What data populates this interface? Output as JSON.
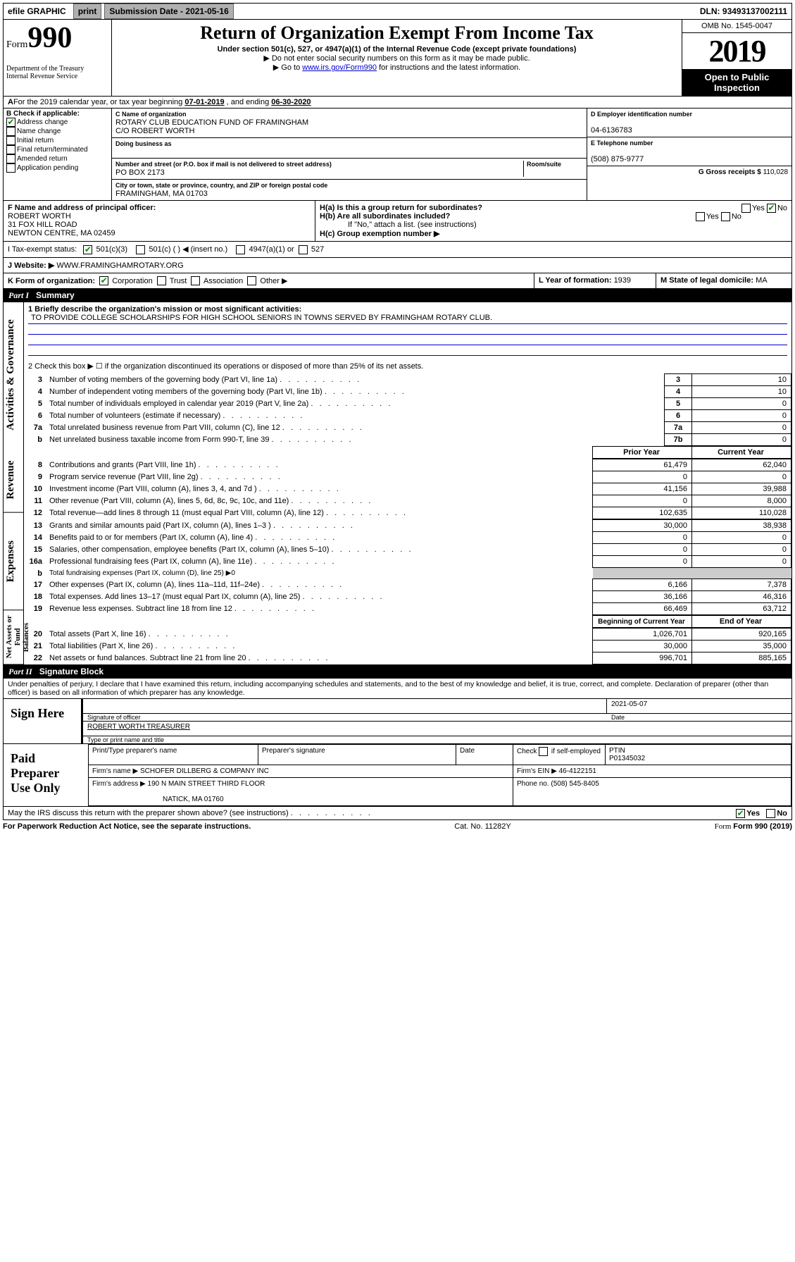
{
  "topbar": {
    "efile": "efile GRAPHIC",
    "print": "print",
    "submission_label": "Submission Date - ",
    "submission_date": "2021-05-16",
    "dln_label": "DLN: ",
    "dln": "93493137002111"
  },
  "header": {
    "form_label": "Form",
    "form_num": "990",
    "dept1": "Department of the Treasury",
    "dept2": "Internal Revenue Service",
    "title": "Return of Organization Exempt From Income Tax",
    "sub1": "Under section 501(c), 527, or 4947(a)(1) of the Internal Revenue Code (except private foundations)",
    "sub2": "▶ Do not enter social security numbers on this form as it may be made public.",
    "sub3_pre": "▶ Go to ",
    "sub3_link": "www.irs.gov/Form990",
    "sub3_post": " for instructions and the latest information.",
    "omb": "OMB No. 1545-0047",
    "year": "2019",
    "open": "Open to Public Inspection"
  },
  "period": {
    "text_pre": "For the 2019 calendar year, or tax year beginning ",
    "begin": "07-01-2019",
    "text_mid": " , and ending ",
    "end": "06-30-2020"
  },
  "boxB": {
    "label": "B Check if applicable:",
    "addr_change": "Address change",
    "name_change": "Name change",
    "initial": "Initial return",
    "final": "Final return/terminated",
    "amended": "Amended return",
    "app_pending": "Application pending"
  },
  "boxC": {
    "name_lbl": "C Name of organization",
    "name1": "ROTARY CLUB EDUCATION FUND OF FRAMINGHAM",
    "name2": "C/O ROBERT WORTH",
    "dba_lbl": "Doing business as",
    "addr_lbl": "Number and street (or P.O. box if mail is not delivered to street address)",
    "room_lbl": "Room/suite",
    "addr": "PO BOX 2173",
    "city_lbl": "City or town, state or province, country, and ZIP or foreign postal code",
    "city": "FRAMINGHAM, MA  01703"
  },
  "boxD": {
    "lbl": "D Employer identification number",
    "val": "04-6136783"
  },
  "boxE": {
    "lbl": "E Telephone number",
    "val": "(508) 875-9777"
  },
  "boxG": {
    "lbl": "G Gross receipts $ ",
    "val": "110,028"
  },
  "boxF": {
    "lbl": "F  Name and address of principal officer:",
    "l1": "ROBERT WORTH",
    "l2": "31 FOX HILL ROAD",
    "l3": "NEWTON CENTRE, MA  02459"
  },
  "boxH": {
    "a_lbl": "H(a)  Is this a group return for subordinates?",
    "b_lbl": "H(b)  Are all subordinates included?",
    "b_note": "If \"No,\" attach a list. (see instructions)",
    "c_lbl": "H(c)  Group exemption number ▶",
    "yes": "Yes",
    "no": "No"
  },
  "boxI": {
    "lbl": "I  Tax-exempt status:",
    "o1": "501(c)(3)",
    "o2": "501(c) (  ) ◀ (insert no.)",
    "o3": "4947(a)(1) or",
    "o4": "527"
  },
  "boxJ": {
    "lbl": "J  Website: ▶ ",
    "val": "WWW.FRAMINGHAMROTARY.ORG"
  },
  "boxK": {
    "lbl": "K Form of organization:",
    "o1": "Corporation",
    "o2": "Trust",
    "o3": "Association",
    "o4": "Other ▶"
  },
  "boxL": {
    "lbl": "L Year of formation: ",
    "val": "1939"
  },
  "boxM": {
    "lbl": "M State of legal domicile: ",
    "val": "MA"
  },
  "part1": {
    "num": "Part I",
    "title": "Summary"
  },
  "summary": {
    "line1_lbl": "1  Briefly describe the organization's mission or most significant activities:",
    "mission": "TO PROVIDE COLLEGE SCHOLARSHIPS FOR HIGH SCHOOL SENIORS IN TOWNS SERVED BY FRAMINGHAM ROTARY CLUB.",
    "line2": "2  Check this box ▶ ☐  if the organization discontinued its operations or disposed of more than 25% of its net assets.",
    "gov_label": "Activities & Governance",
    "rev_label": "Revenue",
    "exp_label": "Expenses",
    "net_label": "Net Assets or Fund Balances",
    "prior_year": "Prior Year",
    "current_year": "Current Year",
    "beg_year": "Beginning of Current Year",
    "end_year": "End of Year",
    "rows_gov": [
      {
        "n": "3",
        "d": "Number of voting members of the governing body (Part VI, line 1a)",
        "box": "3",
        "v": "10"
      },
      {
        "n": "4",
        "d": "Number of independent voting members of the governing body (Part VI, line 1b)",
        "box": "4",
        "v": "10"
      },
      {
        "n": "5",
        "d": "Total number of individuals employed in calendar year 2019 (Part V, line 2a)",
        "box": "5",
        "v": "0"
      },
      {
        "n": "6",
        "d": "Total number of volunteers (estimate if necessary)",
        "box": "6",
        "v": "0"
      },
      {
        "n": "7a",
        "d": "Total unrelated business revenue from Part VIII, column (C), line 12",
        "box": "7a",
        "v": "0"
      },
      {
        "n": "b",
        "d": "Net unrelated business taxable income from Form 990-T, line 39",
        "box": "7b",
        "v": "0"
      }
    ],
    "rows_rev": [
      {
        "n": "8",
        "d": "Contributions and grants (Part VIII, line 1h)",
        "p": "61,479",
        "c": "62,040"
      },
      {
        "n": "9",
        "d": "Program service revenue (Part VIII, line 2g)",
        "p": "0",
        "c": "0"
      },
      {
        "n": "10",
        "d": "Investment income (Part VIII, column (A), lines 3, 4, and 7d )",
        "p": "41,156",
        "c": "39,988"
      },
      {
        "n": "11",
        "d": "Other revenue (Part VIII, column (A), lines 5, 6d, 8c, 9c, 10c, and 11e)",
        "p": "0",
        "c": "8,000"
      },
      {
        "n": "12",
        "d": "Total revenue—add lines 8 through 11 (must equal Part VIII, column (A), line 12)",
        "p": "102,635",
        "c": "110,028"
      }
    ],
    "rows_exp": [
      {
        "n": "13",
        "d": "Grants and similar amounts paid (Part IX, column (A), lines 1–3 )",
        "p": "30,000",
        "c": "38,938"
      },
      {
        "n": "14",
        "d": "Benefits paid to or for members (Part IX, column (A), line 4)",
        "p": "0",
        "c": "0"
      },
      {
        "n": "15",
        "d": "Salaries, other compensation, employee benefits (Part IX, column (A), lines 5–10)",
        "p": "0",
        "c": "0"
      },
      {
        "n": "16a",
        "d": "Professional fundraising fees (Part IX, column (A), line 11e)",
        "p": "0",
        "c": "0"
      },
      {
        "n": "b",
        "d": "Total fundraising expenses (Part IX, column (D), line 25) ▶0",
        "p": "",
        "c": "",
        "grey": true
      },
      {
        "n": "17",
        "d": "Other expenses (Part IX, column (A), lines 11a–11d, 11f–24e)",
        "p": "6,166",
        "c": "7,378"
      },
      {
        "n": "18",
        "d": "Total expenses. Add lines 13–17 (must equal Part IX, column (A), line 25)",
        "p": "36,166",
        "c": "46,316"
      },
      {
        "n": "19",
        "d": "Revenue less expenses. Subtract line 18 from line 12",
        "p": "66,469",
        "c": "63,712"
      }
    ],
    "rows_net": [
      {
        "n": "20",
        "d": "Total assets (Part X, line 16)",
        "p": "1,026,701",
        "c": "920,165"
      },
      {
        "n": "21",
        "d": "Total liabilities (Part X, line 26)",
        "p": "30,000",
        "c": "35,000"
      },
      {
        "n": "22",
        "d": "Net assets or fund balances. Subtract line 21 from line 20",
        "p": "996,701",
        "c": "885,165"
      }
    ]
  },
  "part2": {
    "num": "Part II",
    "title": "Signature Block"
  },
  "perjury": "Under penalties of perjury, I declare that I have examined this return, including accompanying schedules and statements, and to the best of my knowledge and belief, it is true, correct, and complete. Declaration of preparer (other than officer) is based on all information of which preparer has any knowledge.",
  "sign": {
    "here": "Sign Here",
    "sig_officer": "Signature of officer",
    "date": "2021-05-07",
    "date_lbl": "Date",
    "name": "ROBERT WORTH  TREASURER",
    "name_lbl": "Type or print name and title"
  },
  "paid": {
    "label": "Paid Preparer Use Only",
    "h1": "Print/Type preparer's name",
    "h2": "Preparer's signature",
    "h3": "Date",
    "h4_pre": "Check",
    "h4_post": "if self-employed",
    "h5": "PTIN",
    "ptin": "P01345032",
    "firm_name_lbl": "Firm's name    ▶ ",
    "firm_name": "SCHOFER DILLBERG & COMPANY INC",
    "firm_ein_lbl": "Firm's EIN ▶ ",
    "firm_ein": "46-4122151",
    "firm_addr_lbl": "Firm's address ▶ ",
    "firm_addr1": "190 N MAIN STREET THIRD FLOOR",
    "firm_addr2": "NATICK, MA  01760",
    "phone_lbl": "Phone no. ",
    "phone": "(508) 545-8405"
  },
  "discuss": {
    "q": "May the IRS discuss this return with the preparer shown above? (see instructions)",
    "yes": "Yes",
    "no": "No"
  },
  "footer": {
    "left": "For Paperwork Reduction Act Notice, see the separate instructions.",
    "mid": "Cat. No. 11282Y",
    "right": "Form 990 (2019)"
  }
}
